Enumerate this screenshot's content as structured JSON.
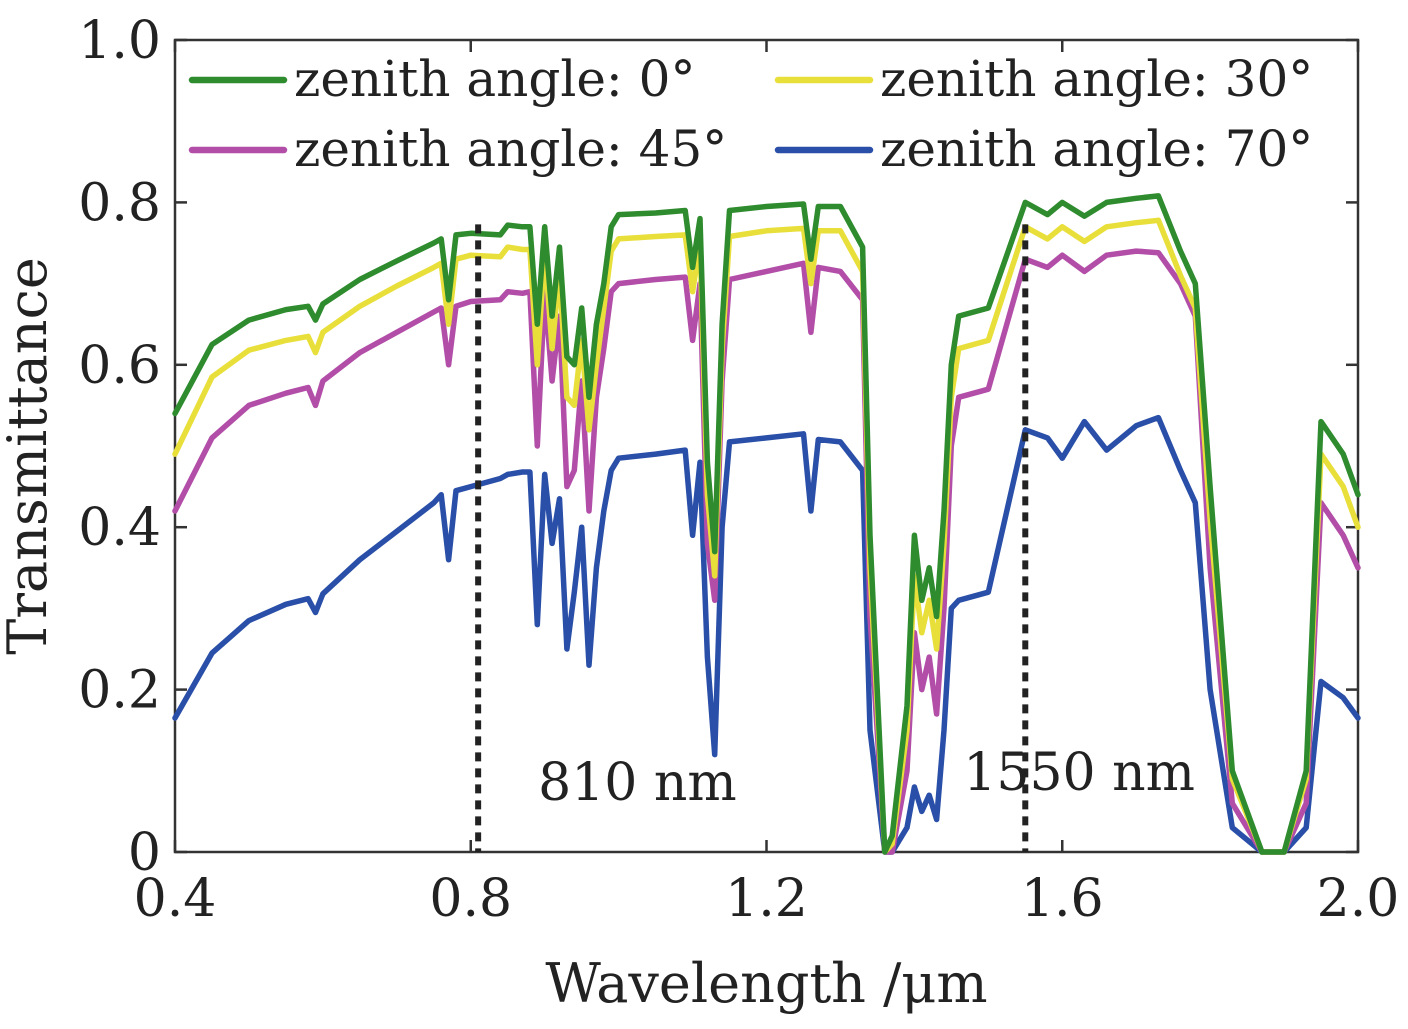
{
  "chart_data": {
    "type": "line",
    "title": "",
    "xlabel": "Wavelength /μm",
    "ylabel": "Transmittance",
    "xlim": [
      0.4,
      2.0
    ],
    "ylim": [
      0,
      1.0
    ],
    "xticks": [
      0.4,
      0.8,
      1.2,
      1.6,
      2.0
    ],
    "xtick_labels": [
      "0.4",
      "0.8",
      "1.2",
      "1.6",
      "2.0"
    ],
    "yticks": [
      0,
      0.2,
      0.4,
      0.6,
      0.8,
      1.0
    ],
    "ytick_labels": [
      "0",
      "0.2",
      "0.4",
      "0.6",
      "0.8",
      "1.0"
    ],
    "grid": false,
    "legend_position": "top",
    "annotations": [
      {
        "text": "810 nm",
        "x": 0.81
      },
      {
        "text": "1550 nm",
        "x": 1.55
      }
    ],
    "series": [
      {
        "name": "zenith angle: 0°",
        "color": "#2e8b2e",
        "x": [
          0.4,
          0.45,
          0.5,
          0.55,
          0.58,
          0.59,
          0.6,
          0.65,
          0.7,
          0.75,
          0.76,
          0.77,
          0.78,
          0.8,
          0.84,
          0.85,
          0.87,
          0.88,
          0.89,
          0.9,
          0.91,
          0.92,
          0.93,
          0.94,
          0.95,
          0.96,
          0.97,
          0.98,
          0.99,
          1.0,
          1.05,
          1.09,
          1.1,
          1.11,
          1.12,
          1.13,
          1.14,
          1.15,
          1.2,
          1.25,
          1.26,
          1.27,
          1.3,
          1.33,
          1.34,
          1.36,
          1.37,
          1.39,
          1.4,
          1.41,
          1.42,
          1.43,
          1.44,
          1.45,
          1.46,
          1.5,
          1.55,
          1.58,
          1.6,
          1.63,
          1.66,
          1.7,
          1.73,
          1.76,
          1.78,
          1.8,
          1.83,
          1.87,
          1.9,
          1.93,
          1.95,
          1.98,
          2.0
        ],
        "y": [
          0.54,
          0.625,
          0.655,
          0.668,
          0.672,
          0.655,
          0.675,
          0.705,
          0.728,
          0.75,
          0.755,
          0.68,
          0.76,
          0.762,
          0.76,
          0.772,
          0.77,
          0.77,
          0.65,
          0.77,
          0.66,
          0.745,
          0.61,
          0.6,
          0.67,
          0.56,
          0.65,
          0.7,
          0.77,
          0.785,
          0.787,
          0.79,
          0.72,
          0.78,
          0.48,
          0.37,
          0.65,
          0.79,
          0.795,
          0.798,
          0.73,
          0.795,
          0.795,
          0.745,
          0.39,
          0.0,
          0.02,
          0.18,
          0.39,
          0.31,
          0.35,
          0.29,
          0.42,
          0.6,
          0.66,
          0.67,
          0.8,
          0.785,
          0.8,
          0.783,
          0.8,
          0.805,
          0.808,
          0.74,
          0.7,
          0.45,
          0.1,
          0.0,
          0.0,
          0.1,
          0.53,
          0.49,
          0.44
        ]
      },
      {
        "name": "zenith angle: 30°",
        "color": "#e8df3a",
        "x": [
          0.4,
          0.45,
          0.5,
          0.55,
          0.58,
          0.59,
          0.6,
          0.65,
          0.7,
          0.75,
          0.76,
          0.77,
          0.78,
          0.8,
          0.84,
          0.85,
          0.87,
          0.88,
          0.89,
          0.9,
          0.91,
          0.92,
          0.93,
          0.94,
          0.95,
          0.96,
          0.97,
          0.98,
          0.99,
          1.0,
          1.05,
          1.09,
          1.1,
          1.11,
          1.12,
          1.13,
          1.14,
          1.15,
          1.2,
          1.25,
          1.26,
          1.27,
          1.3,
          1.33,
          1.34,
          1.36,
          1.37,
          1.39,
          1.4,
          1.41,
          1.42,
          1.43,
          1.44,
          1.45,
          1.46,
          1.5,
          1.55,
          1.58,
          1.6,
          1.63,
          1.66,
          1.7,
          1.73,
          1.76,
          1.78,
          1.8,
          1.83,
          1.87,
          1.9,
          1.93,
          1.95,
          1.98,
          2.0
        ],
        "y": [
          0.49,
          0.585,
          0.618,
          0.63,
          0.635,
          0.615,
          0.64,
          0.672,
          0.697,
          0.72,
          0.725,
          0.65,
          0.73,
          0.735,
          0.733,
          0.745,
          0.742,
          0.742,
          0.6,
          0.742,
          0.62,
          0.715,
          0.56,
          0.55,
          0.63,
          0.52,
          0.6,
          0.67,
          0.74,
          0.755,
          0.758,
          0.76,
          0.69,
          0.75,
          0.44,
          0.34,
          0.62,
          0.758,
          0.765,
          0.768,
          0.7,
          0.765,
          0.765,
          0.715,
          0.35,
          0.0,
          0.01,
          0.15,
          0.34,
          0.27,
          0.31,
          0.25,
          0.38,
          0.56,
          0.62,
          0.63,
          0.77,
          0.755,
          0.77,
          0.752,
          0.77,
          0.775,
          0.778,
          0.71,
          0.67,
          0.41,
          0.09,
          0.0,
          0.0,
          0.09,
          0.49,
          0.45,
          0.4
        ]
      },
      {
        "name": "zenith angle: 45°",
        "color": "#b24ea8",
        "x": [
          0.4,
          0.45,
          0.5,
          0.55,
          0.58,
          0.59,
          0.6,
          0.65,
          0.7,
          0.75,
          0.76,
          0.77,
          0.78,
          0.8,
          0.84,
          0.85,
          0.87,
          0.88,
          0.89,
          0.9,
          0.91,
          0.92,
          0.93,
          0.94,
          0.95,
          0.96,
          0.97,
          0.98,
          0.99,
          1.0,
          1.05,
          1.09,
          1.1,
          1.11,
          1.12,
          1.13,
          1.14,
          1.15,
          1.2,
          1.25,
          1.26,
          1.27,
          1.3,
          1.33,
          1.34,
          1.36,
          1.37,
          1.39,
          1.4,
          1.41,
          1.42,
          1.43,
          1.44,
          1.45,
          1.46,
          1.5,
          1.55,
          1.58,
          1.6,
          1.63,
          1.66,
          1.7,
          1.73,
          1.76,
          1.78,
          1.8,
          1.83,
          1.87,
          1.9,
          1.93,
          1.95,
          1.98,
          2.0
        ],
        "y": [
          0.42,
          0.51,
          0.55,
          0.565,
          0.572,
          0.55,
          0.58,
          0.615,
          0.64,
          0.665,
          0.67,
          0.6,
          0.672,
          0.678,
          0.68,
          0.69,
          0.688,
          0.69,
          0.5,
          0.69,
          0.58,
          0.66,
          0.45,
          0.47,
          0.58,
          0.42,
          0.56,
          0.62,
          0.69,
          0.7,
          0.705,
          0.708,
          0.63,
          0.7,
          0.38,
          0.31,
          0.58,
          0.705,
          0.715,
          0.725,
          0.64,
          0.72,
          0.715,
          0.68,
          0.29,
          0.0,
          0.0,
          0.1,
          0.27,
          0.2,
          0.24,
          0.17,
          0.3,
          0.5,
          0.56,
          0.57,
          0.73,
          0.72,
          0.735,
          0.715,
          0.735,
          0.74,
          0.738,
          0.7,
          0.66,
          0.35,
          0.06,
          0.0,
          0.0,
          0.06,
          0.43,
          0.39,
          0.35
        ]
      },
      {
        "name": "zenith angle: 70°",
        "color": "#2a4fa8",
        "x": [
          0.4,
          0.45,
          0.5,
          0.55,
          0.58,
          0.59,
          0.6,
          0.65,
          0.7,
          0.75,
          0.76,
          0.77,
          0.78,
          0.8,
          0.84,
          0.85,
          0.87,
          0.88,
          0.89,
          0.9,
          0.91,
          0.92,
          0.93,
          0.94,
          0.95,
          0.96,
          0.97,
          0.98,
          0.99,
          1.0,
          1.05,
          1.09,
          1.1,
          1.11,
          1.12,
          1.13,
          1.14,
          1.15,
          1.2,
          1.25,
          1.26,
          1.27,
          1.3,
          1.33,
          1.34,
          1.36,
          1.37,
          1.39,
          1.4,
          1.41,
          1.42,
          1.43,
          1.44,
          1.45,
          1.46,
          1.5,
          1.55,
          1.58,
          1.6,
          1.63,
          1.66,
          1.7,
          1.73,
          1.76,
          1.78,
          1.8,
          1.83,
          1.87,
          1.9,
          1.93,
          1.95,
          1.98,
          2.0
        ],
        "y": [
          0.165,
          0.245,
          0.285,
          0.305,
          0.312,
          0.295,
          0.318,
          0.36,
          0.395,
          0.43,
          0.44,
          0.36,
          0.445,
          0.45,
          0.46,
          0.465,
          0.468,
          0.468,
          0.28,
          0.465,
          0.38,
          0.435,
          0.25,
          0.32,
          0.4,
          0.23,
          0.35,
          0.42,
          0.47,
          0.485,
          0.49,
          0.495,
          0.39,
          0.48,
          0.24,
          0.12,
          0.4,
          0.505,
          0.51,
          0.515,
          0.42,
          0.508,
          0.505,
          0.47,
          0.15,
          0.0,
          0.0,
          0.03,
          0.08,
          0.05,
          0.07,
          0.04,
          0.15,
          0.3,
          0.31,
          0.32,
          0.52,
          0.51,
          0.485,
          0.53,
          0.495,
          0.525,
          0.535,
          0.47,
          0.43,
          0.2,
          0.03,
          0.0,
          0.0,
          0.03,
          0.21,
          0.19,
          0.165
        ]
      }
    ]
  }
}
